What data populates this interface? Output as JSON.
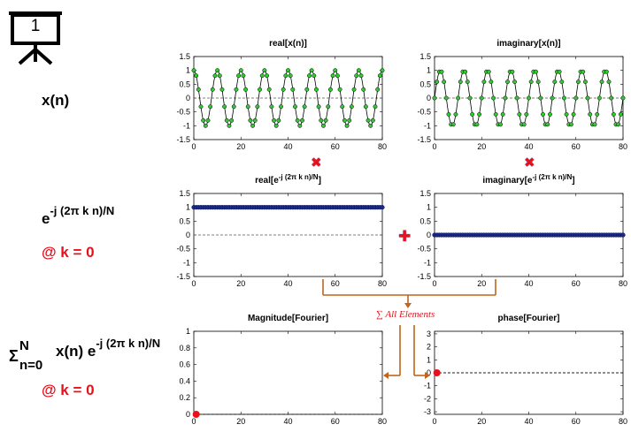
{
  "slide_number": "1",
  "row_labels": {
    "xn": "x(n)",
    "kernel": {
      "base": "e",
      "exponent": "-j (2π k n)/N"
    },
    "kernel_k": "@ k = 0",
    "sum": {
      "sigma": "Σ",
      "upper": "N",
      "lower": "n=0",
      "term": "x(n) e",
      "exponent": "-j (2π k n)/N"
    },
    "sum_k": "@ k = 0"
  },
  "operators": {
    "multiply": "✖",
    "add": "✚"
  },
  "sum_annotation": "∑ All Elements",
  "colors": {
    "accent_red": "#e8101a",
    "arrow": "#c0651b",
    "marker_green": "#32c832",
    "marker_blue": "#1a2a8c"
  },
  "chart_data": [
    {
      "id": "real_x",
      "type": "line",
      "title": "real[x(n)]",
      "x_ticks": [
        "0",
        "20",
        "40",
        "60",
        "80"
      ],
      "y_ticks": [
        "1.5",
        "1",
        "0.5",
        "0",
        "-0.5",
        "-1",
        "-1.5"
      ],
      "xlim": [
        0,
        80
      ],
      "ylim": [
        -1.5,
        1.5
      ],
      "series": [
        {
          "formula": "cos(2π·8·n/80)",
          "n_range": [
            0,
            80
          ]
        }
      ]
    },
    {
      "id": "imag_x",
      "type": "line",
      "title": "imaginary[x(n)]",
      "x_ticks": [
        "0",
        "20",
        "40",
        "60",
        "80"
      ],
      "y_ticks": [
        "1.5",
        "1",
        "0.5",
        "0",
        "-0.5",
        "-1",
        "-1.5"
      ],
      "xlim": [
        0,
        80
      ],
      "ylim": [
        -1.5,
        1.5
      ],
      "series": [
        {
          "formula": "sin(2π·8·n/80)",
          "n_range": [
            0,
            80
          ]
        }
      ]
    },
    {
      "id": "real_e",
      "type": "scatter",
      "title": "real[e",
      "title_sup": "-j (2π k n)/N",
      "title_end": "]",
      "x_ticks": [
        "0",
        "20",
        "40",
        "60",
        "80"
      ],
      "y_ticks": [
        "1.5",
        "1",
        "0.5",
        "0",
        "-0.5",
        "-1",
        "-1.5"
      ],
      "xlim": [
        0,
        80
      ],
      "ylim": [
        -1.5,
        1.5
      ],
      "series": [
        {
          "constant": 1,
          "n_range": [
            0,
            80
          ]
        }
      ]
    },
    {
      "id": "imag_e",
      "type": "scatter",
      "title": "imaginary[e",
      "title_sup": "-j (2π k n)/N",
      "title_end": "]",
      "x_ticks": [
        "0",
        "20",
        "40",
        "60",
        "80"
      ],
      "y_ticks": [
        "1.5",
        "1",
        "0.5",
        "0",
        "-0.5",
        "-1",
        "-1.5"
      ],
      "xlim": [
        0,
        80
      ],
      "ylim": [
        -1.5,
        1.5
      ],
      "series": [
        {
          "constant": 0,
          "n_range": [
            0,
            80
          ]
        }
      ]
    },
    {
      "id": "mag",
      "type": "scatter",
      "title": "Magnitude[Fourier]",
      "x_ticks": [
        "0",
        "20",
        "40",
        "60",
        "80"
      ],
      "y_ticks": [
        "1",
        "0.8",
        "0.6",
        "0.4",
        "0.2",
        "0"
      ],
      "xlim": [
        0,
        80
      ],
      "ylim": [
        0,
        1
      ],
      "points": [
        [
          1,
          0
        ]
      ]
    },
    {
      "id": "phase",
      "type": "scatter",
      "title": "phase[Fourier]",
      "x_ticks": [
        "0",
        "20",
        "40",
        "60",
        "80"
      ],
      "y_ticks": [
        "3",
        "2",
        "1",
        "0",
        "-1",
        "-2",
        "-3"
      ],
      "xlim": [
        0,
        80
      ],
      "ylim": [
        -3.2,
        3.2
      ],
      "points": [
        [
          1,
          0
        ]
      ]
    }
  ]
}
